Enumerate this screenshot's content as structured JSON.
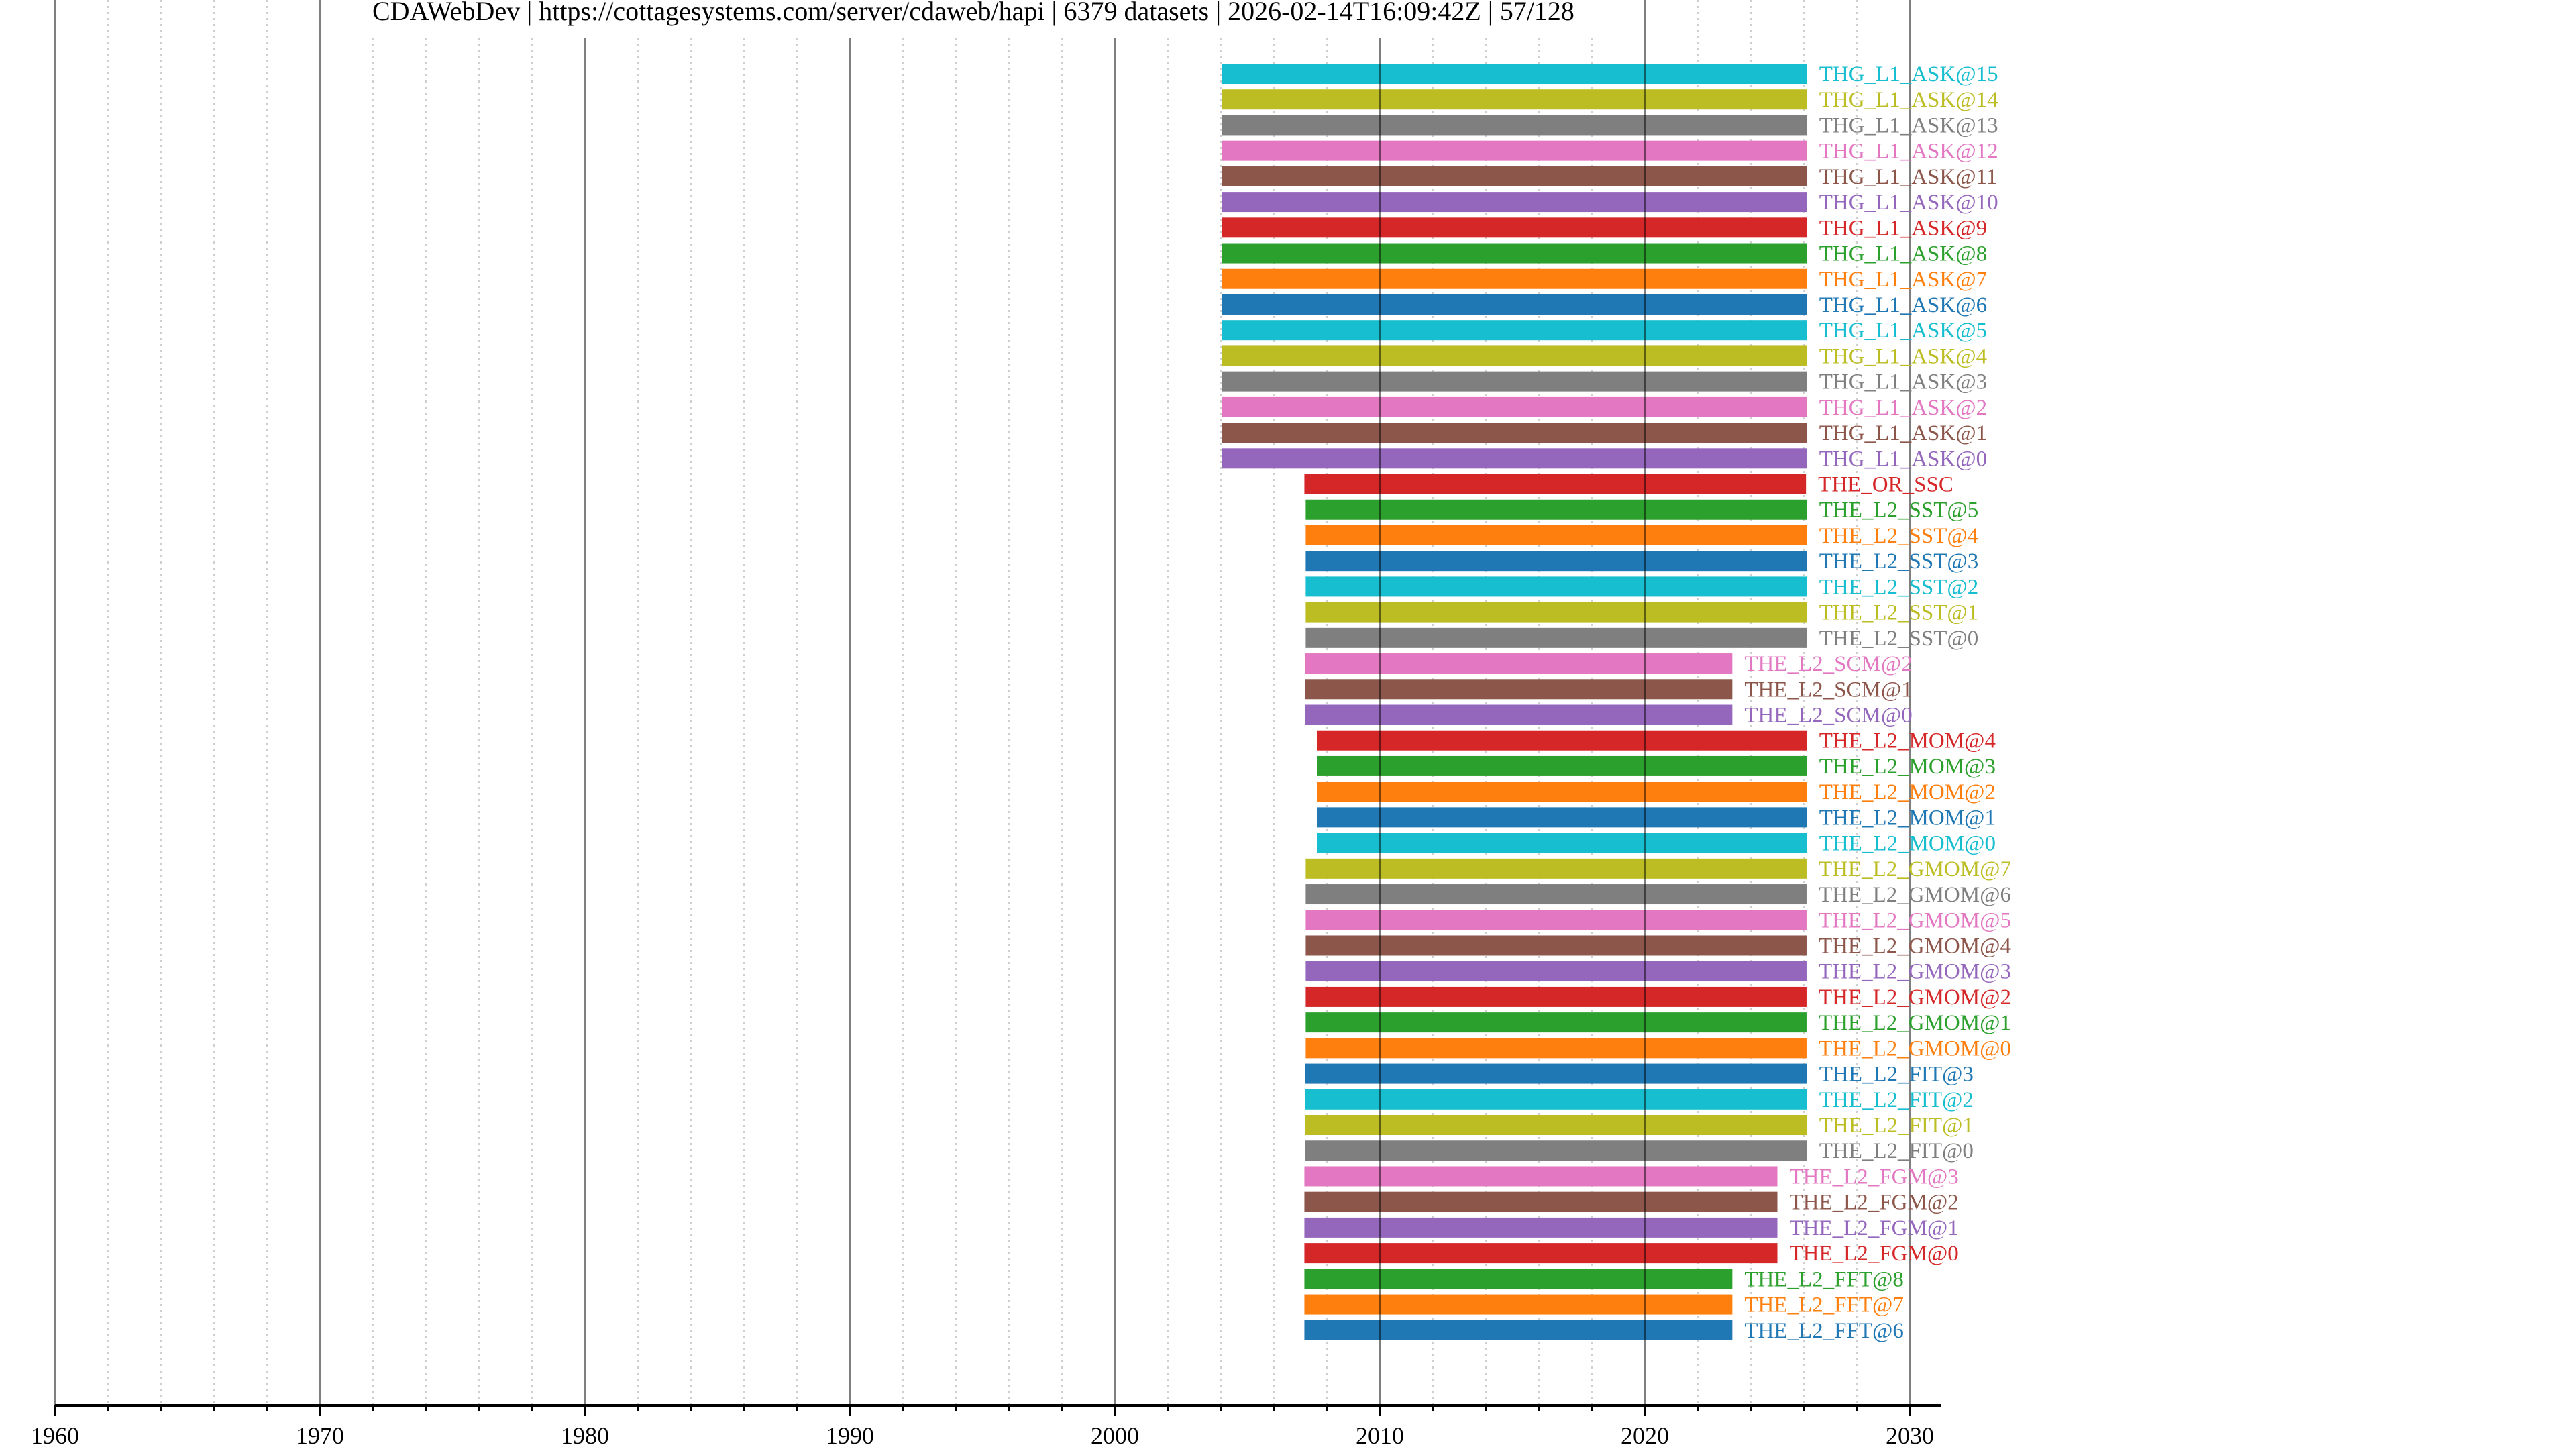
{
  "title": "CDAWebDev | https://cottagesystems.com/server/cdaweb/hapi | 6379 datasets | 2026-02-14T16:09:42Z | 57/128",
  "chart_data": {
    "type": "timeline",
    "title": "CDAWebDev | https://cottagesystems.com/server/cdaweb/hapi | 6379 datasets | 2026-02-14T16:09:42Z | 57/128",
    "xlabel": "",
    "ylabel": "",
    "xlim": [
      1960,
      2031.2
    ],
    "x_ticks_major": [
      1960,
      1970,
      1980,
      1990,
      2000,
      2010,
      2020,
      2030
    ],
    "x_tick_labels": [
      "1960",
      "1970",
      "1980",
      "1990",
      "2000",
      "2010",
      "2020",
      "2030"
    ],
    "x_minor_step": 2,
    "grid": true,
    "series": [
      {
        "name": "THG_L1_ASK@15",
        "start": 2004.05,
        "end": 2026.12,
        "color": "#17becf"
      },
      {
        "name": "THG_L1_ASK@14",
        "start": 2004.05,
        "end": 2026.12,
        "color": "#bcbd22"
      },
      {
        "name": "THG_L1_ASK@13",
        "start": 2004.05,
        "end": 2026.12,
        "color": "#7f7f7f"
      },
      {
        "name": "THG_L1_ASK@12",
        "start": 2004.05,
        "end": 2026.12,
        "color": "#e377c2"
      },
      {
        "name": "THG_L1_ASK@11",
        "start": 2004.05,
        "end": 2026.12,
        "color": "#8c564b"
      },
      {
        "name": "THG_L1_ASK@10",
        "start": 2004.05,
        "end": 2026.12,
        "color": "#9467bd"
      },
      {
        "name": "THG_L1_ASK@9",
        "start": 2004.05,
        "end": 2026.12,
        "color": "#d62728"
      },
      {
        "name": "THG_L1_ASK@8",
        "start": 2004.05,
        "end": 2026.12,
        "color": "#2ca02c"
      },
      {
        "name": "THG_L1_ASK@7",
        "start": 2004.05,
        "end": 2026.12,
        "color": "#ff7f0e"
      },
      {
        "name": "THG_L1_ASK@6",
        "start": 2004.05,
        "end": 2026.12,
        "color": "#1f77b4"
      },
      {
        "name": "THG_L1_ASK@5",
        "start": 2004.05,
        "end": 2026.12,
        "color": "#17becf"
      },
      {
        "name": "THG_L1_ASK@4",
        "start": 2004.05,
        "end": 2026.12,
        "color": "#bcbd22"
      },
      {
        "name": "THG_L1_ASK@3",
        "start": 2004.05,
        "end": 2026.12,
        "color": "#7f7f7f"
      },
      {
        "name": "THG_L1_ASK@2",
        "start": 2004.05,
        "end": 2026.12,
        "color": "#e377c2"
      },
      {
        "name": "THG_L1_ASK@1",
        "start": 2004.05,
        "end": 2026.12,
        "color": "#8c564b"
      },
      {
        "name": "THG_L1_ASK@0",
        "start": 2004.05,
        "end": 2026.12,
        "color": "#9467bd"
      },
      {
        "name": "THE_OR_SSC",
        "start": 2007.15,
        "end": 2026.08,
        "color": "#d62728"
      },
      {
        "name": "THE_L2_SST@5",
        "start": 2007.2,
        "end": 2026.12,
        "color": "#2ca02c"
      },
      {
        "name": "THE_L2_SST@4",
        "start": 2007.2,
        "end": 2026.12,
        "color": "#ff7f0e"
      },
      {
        "name": "THE_L2_SST@3",
        "start": 2007.2,
        "end": 2026.12,
        "color": "#1f77b4"
      },
      {
        "name": "THE_L2_SST@2",
        "start": 2007.2,
        "end": 2026.12,
        "color": "#17becf"
      },
      {
        "name": "THE_L2_SST@1",
        "start": 2007.2,
        "end": 2026.12,
        "color": "#bcbd22"
      },
      {
        "name": "THE_L2_SST@0",
        "start": 2007.2,
        "end": 2026.12,
        "color": "#7f7f7f"
      },
      {
        "name": "THE_L2_SCM@2",
        "start": 2007.17,
        "end": 2023.3,
        "color": "#e377c2"
      },
      {
        "name": "THE_L2_SCM@1",
        "start": 2007.17,
        "end": 2023.3,
        "color": "#8c564b"
      },
      {
        "name": "THE_L2_SCM@0",
        "start": 2007.17,
        "end": 2023.3,
        "color": "#9467bd"
      },
      {
        "name": "THE_L2_MOM@4",
        "start": 2007.62,
        "end": 2026.12,
        "color": "#d62728"
      },
      {
        "name": "THE_L2_MOM@3",
        "start": 2007.62,
        "end": 2026.12,
        "color": "#2ca02c"
      },
      {
        "name": "THE_L2_MOM@2",
        "start": 2007.62,
        "end": 2026.12,
        "color": "#ff7f0e"
      },
      {
        "name": "THE_L2_MOM@1",
        "start": 2007.62,
        "end": 2026.12,
        "color": "#1f77b4"
      },
      {
        "name": "THE_L2_MOM@0",
        "start": 2007.62,
        "end": 2026.12,
        "color": "#17becf"
      },
      {
        "name": "THE_L2_GMOM@7",
        "start": 2007.2,
        "end": 2026.1,
        "color": "#bcbd22"
      },
      {
        "name": "THE_L2_GMOM@6",
        "start": 2007.2,
        "end": 2026.1,
        "color": "#7f7f7f"
      },
      {
        "name": "THE_L2_GMOM@5",
        "start": 2007.2,
        "end": 2026.1,
        "color": "#e377c2"
      },
      {
        "name": "THE_L2_GMOM@4",
        "start": 2007.2,
        "end": 2026.1,
        "color": "#8c564b"
      },
      {
        "name": "THE_L2_GMOM@3",
        "start": 2007.2,
        "end": 2026.1,
        "color": "#9467bd"
      },
      {
        "name": "THE_L2_GMOM@2",
        "start": 2007.2,
        "end": 2026.1,
        "color": "#d62728"
      },
      {
        "name": "THE_L2_GMOM@1",
        "start": 2007.2,
        "end": 2026.1,
        "color": "#2ca02c"
      },
      {
        "name": "THE_L2_GMOM@0",
        "start": 2007.2,
        "end": 2026.1,
        "color": "#ff7f0e"
      },
      {
        "name": "THE_L2_FIT@3",
        "start": 2007.17,
        "end": 2026.12,
        "color": "#1f77b4"
      },
      {
        "name": "THE_L2_FIT@2",
        "start": 2007.17,
        "end": 2026.12,
        "color": "#17becf"
      },
      {
        "name": "THE_L2_FIT@1",
        "start": 2007.17,
        "end": 2026.12,
        "color": "#bcbd22"
      },
      {
        "name": "THE_L2_FIT@0",
        "start": 2007.17,
        "end": 2026.12,
        "color": "#7f7f7f"
      },
      {
        "name": "THE_L2_FGM@3",
        "start": 2007.15,
        "end": 2025.0,
        "color": "#e377c2"
      },
      {
        "name": "THE_L2_FGM@2",
        "start": 2007.15,
        "end": 2025.0,
        "color": "#8c564b"
      },
      {
        "name": "THE_L2_FGM@1",
        "start": 2007.15,
        "end": 2025.0,
        "color": "#9467bd"
      },
      {
        "name": "THE_L2_FGM@0",
        "start": 2007.15,
        "end": 2025.0,
        "color": "#d62728"
      },
      {
        "name": "THE_L2_FFT@8",
        "start": 2007.15,
        "end": 2023.3,
        "color": "#2ca02c"
      },
      {
        "name": "THE_L2_FFT@7",
        "start": 2007.15,
        "end": 2023.3,
        "color": "#ff7f0e"
      },
      {
        "name": "THE_L2_FFT@6",
        "start": 2007.15,
        "end": 2023.3,
        "color": "#1f77b4"
      }
    ]
  }
}
